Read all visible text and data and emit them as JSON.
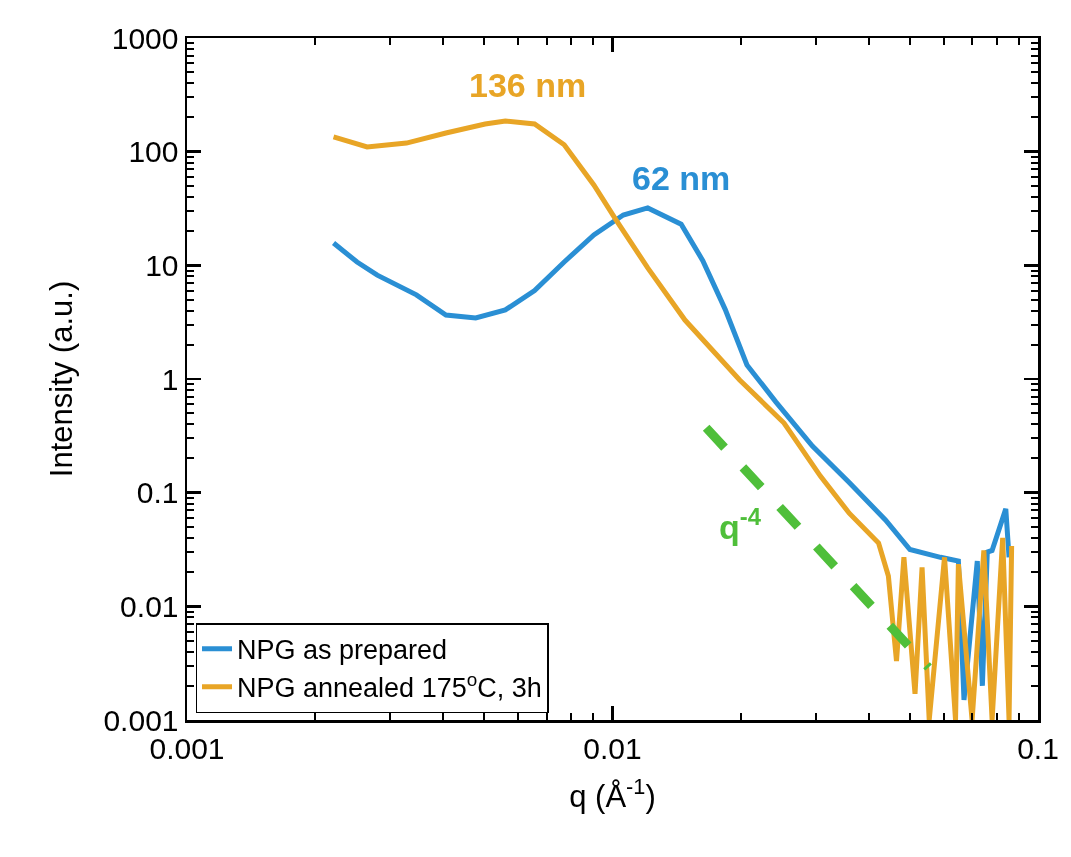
{
  "chart_data": {
    "type": "line",
    "xlabel": "q (Å$^{-1}$)",
    "ylabel": "Intensity (a.u.)",
    "log": "xy",
    "xlim": [
      0.001,
      0.1
    ],
    "xticks": [
      0.001,
      0.01,
      0.1
    ],
    "ylim": [
      0.001,
      1000
    ],
    "yticks": [
      0.001,
      0.01,
      0.1,
      1,
      10,
      100,
      1000
    ],
    "grid": false,
    "legend": "bottom left",
    "marker": "none",
    "series": [
      {
        "name": "NPG as prepared",
        "color": "#2a8fd4",
        "x": [
          0.00221,
          0.00251,
          0.0028,
          0.00346,
          0.00406,
          0.00477,
          0.0056,
          0.00656,
          0.0077,
          0.00904,
          0.0106,
          0.0121,
          0.0145,
          0.0163,
          0.0184,
          0.0207,
          0.0242,
          0.0295,
          0.036,
          0.0438,
          0.05,
          0.059,
          0.065,
          0.067,
          0.072,
          0.074,
          0.076,
          0.078,
          0.084,
          0.0855
        ],
        "values": [
          15.7,
          10.7,
          8.2,
          5.5,
          3.66,
          3.45,
          4.05,
          6.0,
          10.7,
          18.5,
          27.7,
          32,
          23,
          11,
          4.1,
          1.33,
          0.63,
          0.257,
          0.123,
          0.0575,
          0.0316,
          0.027,
          0.025,
          0.0015,
          0.025,
          0.002,
          0.03,
          0.031,
          0.072,
          0.027
        ]
      },
      {
        "name": "NPG annealed 175$^{o}$C, 3h",
        "color": "#e8a526",
        "x": [
          0.00221,
          0.00265,
          0.00328,
          0.00406,
          0.00502,
          0.0056,
          0.00656,
          0.0077,
          0.00904,
          0.0102,
          0.0121,
          0.0148,
          0.0199,
          0.0253,
          0.0308,
          0.036,
          0.0422,
          0.0445,
          0.0465,
          0.0484,
          0.0514,
          0.0534,
          0.0555,
          0.0603,
          0.064,
          0.065,
          0.07,
          0.0746,
          0.078,
          0.0826,
          0.0855,
          0.0867
        ],
        "values": [
          135,
          110,
          119,
          146,
          175,
          186,
          175,
          115,
          51,
          25,
          9.5,
          3.3,
          0.98,
          0.41,
          0.14,
          0.066,
          0.036,
          0.0185,
          0.0033,
          0.027,
          0.0017,
          0.022,
          0.001,
          0.027,
          0.001,
          0.0235,
          0.001,
          0.031,
          0.001,
          0.04,
          0.001,
          0.034
        ]
      },
      {
        "type": "line",
        "color": "#4fbf3a",
        "line_style": "dashed",
        "x": [
          0.0166,
          0.0553
        ],
        "values": [
          0.372,
          0.0029
        ]
      }
    ],
    "annotations": [
      "136 nm",
      "62 nm",
      "q$^{-4}$"
    ]
  }
}
